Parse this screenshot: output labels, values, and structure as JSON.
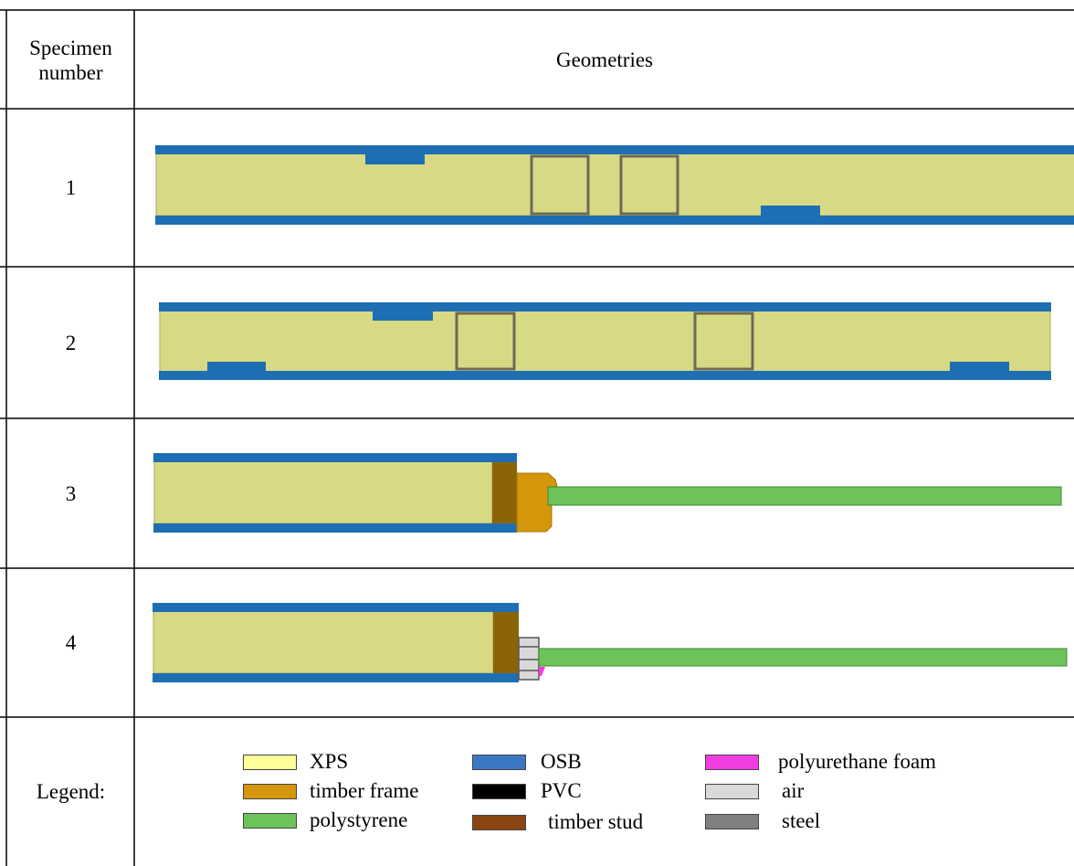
{
  "table": {
    "header_specimen": "Specimen number",
    "header_geometries": "Geometries",
    "rows": [
      {
        "number": "1"
      },
      {
        "number": "2"
      },
      {
        "number": "3"
      },
      {
        "number": "4"
      }
    ],
    "legend_title": "Legend:"
  },
  "legend": [
    {
      "label": "XPS",
      "color": "#ffff99"
    },
    {
      "label": "timber frame",
      "color": "#d4960a"
    },
    {
      "label": "polystyrene",
      "color": "#6cc35a"
    },
    {
      "label": "OSB",
      "color": "#3b78c4"
    },
    {
      "label": "PVC",
      "color": "#000000"
    },
    {
      "label": "timber stud",
      "color": "#8b4513"
    },
    {
      "label": "polyurethane foam",
      "color": "#f03ce0"
    },
    {
      "label": "air",
      "color": "#d9d9d9"
    },
    {
      "label": "steel",
      "color": "#808080"
    }
  ],
  "colors": {
    "xps_fill": "#d8d984",
    "osb_fill": "#1e6eb4",
    "timber_frame_fill": "#d4960a",
    "timber_stud_fill": "#8b6408",
    "polystyrene_fill": "#6cc35a",
    "stud_outline": "#6b6b55"
  }
}
